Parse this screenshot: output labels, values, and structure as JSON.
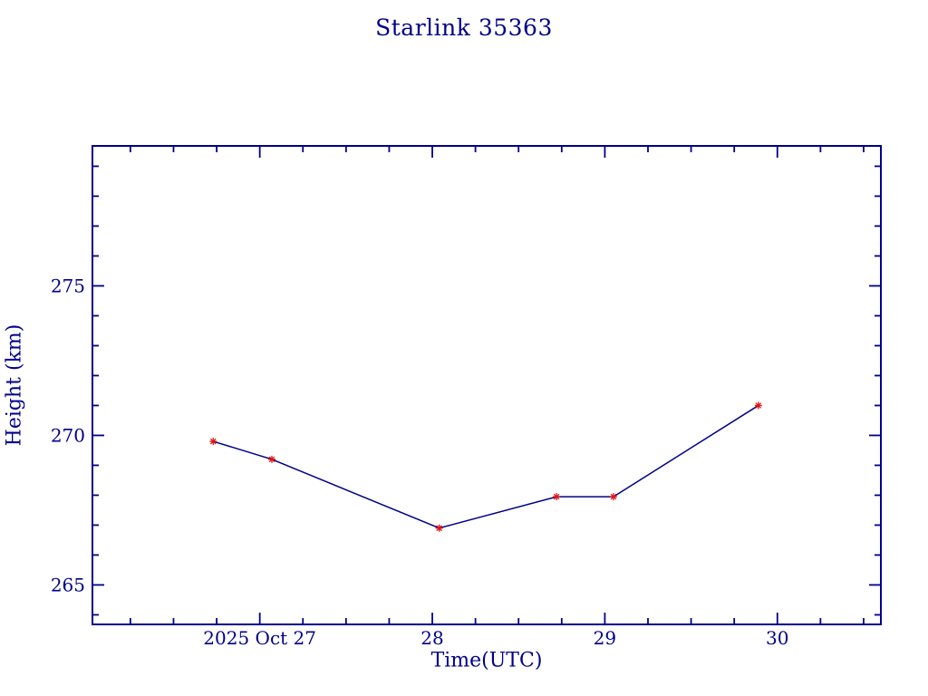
{
  "page": {
    "background": "#ffffff"
  },
  "chart_data": {
    "type": "line",
    "title": "Starlink 35363",
    "xlabel": "Time(UTC)",
    "ylabel": "Height (km)",
    "series": [
      {
        "name": "height",
        "x": [
          26.73,
          27.07,
          28.04,
          28.72,
          29.05,
          29.89
        ],
        "y": [
          269.8,
          269.2,
          266.9,
          267.95,
          267.95,
          271.0
        ],
        "line_color": "#00008B",
        "marker": "asterisk",
        "marker_color": "#DE1414"
      }
    ],
    "x_axis": {
      "lim": [
        26.03,
        30.6
      ],
      "major_ticks": [
        27,
        28,
        29,
        30
      ],
      "major_tick_labels": [
        "2025 Oct 27",
        "28",
        "29",
        "30"
      ],
      "minor_tick_step": 0.25
    },
    "y_axis": {
      "lim": [
        263.68,
        279.68
      ],
      "major_ticks": [
        265,
        270,
        275
      ],
      "major_tick_labels": [
        "265",
        "270",
        "275"
      ],
      "minor_tick_step": 1
    },
    "grid": false,
    "legend": "none",
    "axis_color": "#00008B",
    "text_color": "#00008B",
    "background_color": "#ffffff"
  }
}
